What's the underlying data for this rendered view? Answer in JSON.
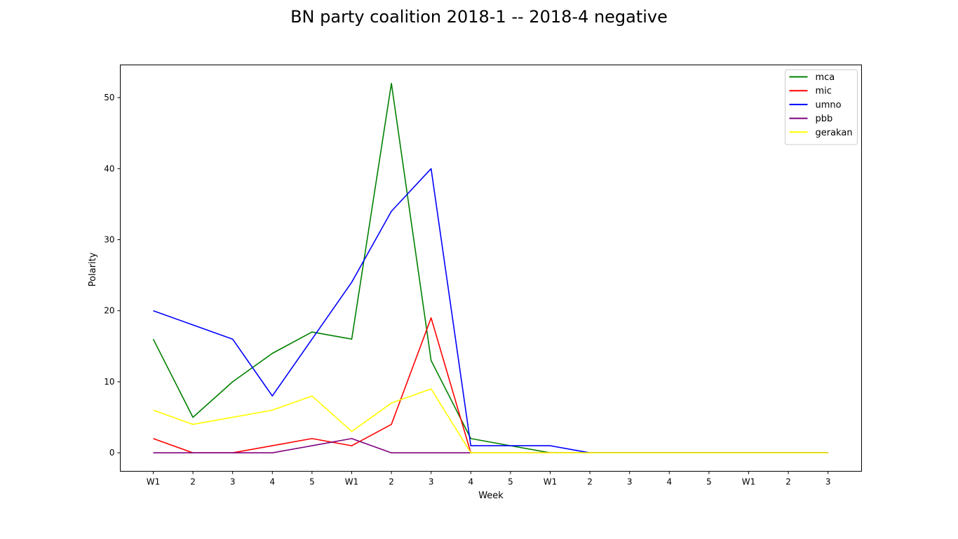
{
  "chart_data": {
    "type": "line",
    "title": "BN party coalition 2018-1 -- 2018-4 negative",
    "xlabel": "Week",
    "ylabel": "Polarity",
    "categories": [
      "W1",
      "2",
      "3",
      "4",
      "5",
      "W1",
      "2",
      "3",
      "4",
      "5",
      "W1",
      "2",
      "3",
      "4",
      "5",
      "W1",
      "2",
      "3"
    ],
    "ylim": [
      -2.6,
      54.6
    ],
    "yticks": [
      0,
      10,
      20,
      30,
      40,
      50
    ],
    "grid": false,
    "legend_position": "top-right",
    "series": [
      {
        "name": "mca",
        "color": "#008000",
        "values": [
          16,
          5,
          10,
          14,
          17,
          16,
          52,
          13,
          2,
          1,
          0,
          0,
          0,
          0,
          0,
          0,
          0,
          0
        ]
      },
      {
        "name": "mic",
        "color": "#ff0000",
        "values": [
          2,
          0,
          0,
          1,
          2,
          1,
          4,
          19,
          0,
          0,
          0,
          0,
          0,
          0,
          0,
          0,
          0,
          0
        ]
      },
      {
        "name": "umno",
        "color": "#0000ff",
        "values": [
          20,
          18,
          16,
          8,
          16,
          24,
          34,
          40,
          1,
          1,
          1,
          0,
          0,
          0,
          0,
          0,
          0,
          0
        ]
      },
      {
        "name": "pbb",
        "color": "#800080",
        "values": [
          0,
          0,
          0,
          0,
          1,
          2,
          0,
          0,
          0,
          0,
          0,
          0,
          0,
          0,
          0,
          0,
          0,
          0
        ]
      },
      {
        "name": "gerakan",
        "color": "#ffff00",
        "values": [
          6,
          4,
          5,
          6,
          8,
          3,
          7,
          9,
          0,
          0,
          0,
          0,
          0,
          0,
          0,
          0,
          0,
          0
        ]
      }
    ]
  }
}
